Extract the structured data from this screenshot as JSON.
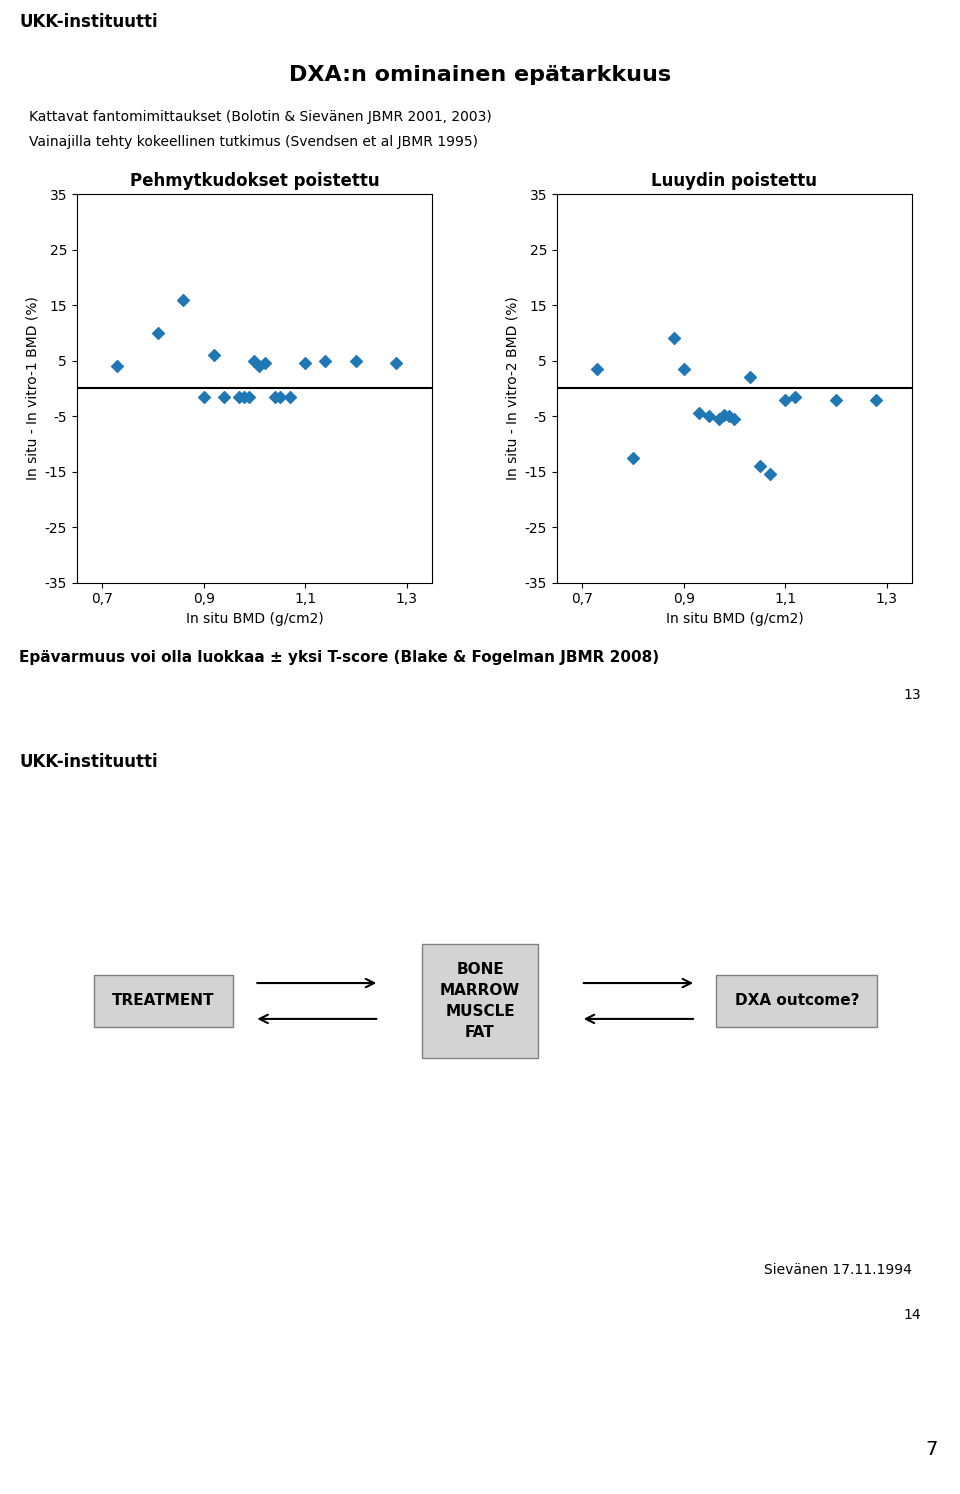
{
  "title": "DXA:n ominainen epätarkkuus",
  "annotations": [
    "UKK-instituutti",
    "Kattavat fantomimittaukset (Bolotin & Sievänen JBMR 2001, 2003)",
    "Vainajilla tehty kokeellinen tutkimus (Svendsen et al JBMR 1995)",
    "Epävarmuus voi olla luokkaa ± yksi T-score (Blake & Fogelman JBMR 2008)",
    "13",
    "UKK-instituutti",
    "TREATMENT",
    "BONE\nMARROW\nMUSCLE\nFAT",
    "DXA outcome?",
    "Sievänen 17.11.1994",
    "14",
    "7"
  ],
  "chart_data": [
    {
      "type": "scatter",
      "title": "Pehmytkudokset poistettu",
      "x_label": "In situ BMD (g/cm2)",
      "y_label": "In situ - In vitro-1 BMD (%)",
      "x": [
        0.73,
        0.81,
        0.86,
        0.9,
        0.92,
        0.94,
        0.97,
        0.98,
        0.99,
        1.0,
        1.01,
        1.02,
        1.04,
        1.05,
        1.07,
        1.1,
        1.14,
        1.2,
        1.28
      ],
      "values": [
        4.0,
        10.0,
        16.0,
        -1.5,
        6.0,
        -1.5,
        -1.5,
        -1.5,
        -1.5,
        5.0,
        4.0,
        4.5,
        -1.5,
        -1.5,
        -1.5,
        4.5,
        5.0,
        5.0,
        4.5
      ],
      "marker": "D",
      "hline": 0,
      "xlim": [
        0.65,
        1.35
      ],
      "ylim": [
        -35,
        35
      ],
      "xticks": [
        {
          "value": 0.7,
          "label": "0,7"
        },
        {
          "value": 0.9,
          "label": "0,9"
        },
        {
          "value": 1.1,
          "label": "1,1"
        },
        {
          "value": 1.3,
          "label": "1,3"
        }
      ],
      "yticks": [
        -35,
        -25,
        -15,
        -5,
        5,
        15,
        25,
        35
      ]
    },
    {
      "type": "scatter",
      "title": "Luuydin poistettu",
      "x_label": "In situ BMD (g/cm2)",
      "y_label": "In situ - In vitro-2 BMD (%)",
      "x": [
        0.73,
        0.8,
        0.88,
        0.9,
        0.93,
        0.95,
        0.97,
        0.98,
        0.99,
        1.0,
        1.03,
        1.05,
        1.07,
        1.1,
        1.12,
        1.2,
        1.28
      ],
      "values": [
        3.5,
        -12.5,
        9.0,
        3.5,
        -4.5,
        -5.0,
        -5.5,
        -4.8,
        -5.0,
        -5.5,
        2.0,
        -14.0,
        -15.5,
        -2.0,
        -1.5,
        -2.0,
        -2.0
      ],
      "marker": "D",
      "hline": 0,
      "xlim": [
        0.65,
        1.35
      ],
      "ylim": [
        -35,
        35
      ],
      "xticks": [
        {
          "value": 0.7,
          "label": "0,7"
        },
        {
          "value": 0.9,
          "label": "0,9"
        },
        {
          "value": 1.1,
          "label": "1,1"
        },
        {
          "value": 1.3,
          "label": "1,3"
        }
      ],
      "yticks": [
        -35,
        -25,
        -15,
        -5,
        5,
        15,
        25,
        35
      ]
    }
  ]
}
